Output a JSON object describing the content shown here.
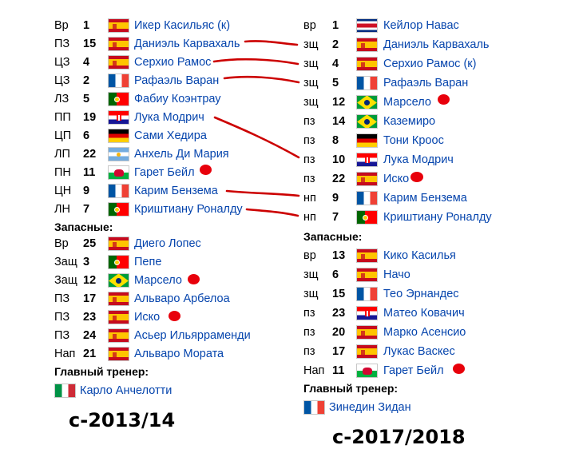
{
  "left": {
    "season": "с-2013/14",
    "starters": [
      {
        "pos": "Вр",
        "num": "1",
        "flag": "es",
        "name": "Икер Касильяс (к)"
      },
      {
        "pos": "ПЗ",
        "num": "15",
        "flag": "es",
        "name": "Даниэль Карвахаль"
      },
      {
        "pos": "ЦЗ",
        "num": "4",
        "flag": "es",
        "name": "Серхио Рамос"
      },
      {
        "pos": "ЦЗ",
        "num": "2",
        "flag": "fr",
        "name": "Рафаэль Варан"
      },
      {
        "pos": "ЛЗ",
        "num": "5",
        "flag": "pt",
        "name": "Фабиу Коэнтрау"
      },
      {
        "pos": "ПП",
        "num": "19",
        "flag": "hr",
        "name": "Лука Модрич"
      },
      {
        "pos": "ЦП",
        "num": "6",
        "flag": "de",
        "name": "Сами Хедира"
      },
      {
        "pos": "ЛП",
        "num": "22",
        "flag": "ar",
        "name": "Анхель Ди Мария"
      },
      {
        "pos": "ПН",
        "num": "11",
        "flag": "wa",
        "name": "Гарет Бейл"
      },
      {
        "pos": "ЦН",
        "num": "9",
        "flag": "fr",
        "name": "Карим Бензема"
      },
      {
        "pos": "ЛН",
        "num": "7",
        "flag": "pt",
        "name": "Криштиану Роналду"
      }
    ],
    "subs_label": "Запасные:",
    "subs": [
      {
        "pos": "Вр",
        "num": "25",
        "flag": "es",
        "name": "Диего Лопес"
      },
      {
        "pos": "Защ",
        "num": "3",
        "flag": "pt",
        "name": "Пепе"
      },
      {
        "pos": "Защ",
        "num": "12",
        "flag": "br",
        "name": "Марсело"
      },
      {
        "pos": "ПЗ",
        "num": "17",
        "flag": "es",
        "name": "Альваро Арбелоа"
      },
      {
        "pos": "ПЗ",
        "num": "23",
        "flag": "es",
        "name": "Иско"
      },
      {
        "pos": "ПЗ",
        "num": "24",
        "flag": "es",
        "name": "Асьер Ильярраменди"
      },
      {
        "pos": "Нап",
        "num": "21",
        "flag": "es",
        "name": "Альваро Мората"
      }
    ],
    "coach_label": "Главный тренер:",
    "coach": {
      "flag": "it",
      "name": "Карло Анчелотти"
    }
  },
  "right": {
    "season": "с-2017/2018",
    "starters": [
      {
        "pos": "вр",
        "num": "1",
        "flag": "cr",
        "name": "Кейлор Навас"
      },
      {
        "pos": "зщ",
        "num": "2",
        "flag": "es",
        "name": "Даниэль Карвахаль"
      },
      {
        "pos": "зщ",
        "num": "4",
        "flag": "es",
        "name": "Серхио Рамос (к)"
      },
      {
        "pos": "зщ",
        "num": "5",
        "flag": "fr",
        "name": "Рафаэль Варан"
      },
      {
        "pos": "зщ",
        "num": "12",
        "flag": "br",
        "name": "Марсело"
      },
      {
        "pos": "пз",
        "num": "14",
        "flag": "br",
        "name": "Каземиро"
      },
      {
        "pos": "пз",
        "num": "8",
        "flag": "de",
        "name": "Тони Кроос"
      },
      {
        "pos": "пз",
        "num": "10",
        "flag": "hr",
        "name": "Лука Модрич"
      },
      {
        "pos": "пз",
        "num": "22",
        "flag": "es",
        "name": "Иско"
      },
      {
        "pos": "нп",
        "num": "9",
        "flag": "fr",
        "name": "Карим Бензема"
      },
      {
        "pos": "нп",
        "num": "7",
        "flag": "pt",
        "name": "Криштиану Роналду"
      }
    ],
    "subs_label": "Запасные:",
    "subs": [
      {
        "pos": "вр",
        "num": "13",
        "flag": "es",
        "name": "Кико Касилья"
      },
      {
        "pos": "зщ",
        "num": "6",
        "flag": "es",
        "name": "Начо"
      },
      {
        "pos": "зщ",
        "num": "15",
        "flag": "fr",
        "name": "Тео Эрнандес"
      },
      {
        "pos": "пз",
        "num": "23",
        "flag": "hr",
        "name": "Матео Ковачич"
      },
      {
        "pos": "пз",
        "num": "20",
        "flag": "es",
        "name": "Марко Асенсио"
      },
      {
        "pos": "пз",
        "num": "17",
        "flag": "es",
        "name": "Лукас Васкес"
      },
      {
        "pos": "Нап",
        "num": "11",
        "flag": "wa",
        "name": "Гарет Бейл"
      }
    ],
    "coach_label": "Главный тренер:",
    "coach": {
      "flag": "fr",
      "name": "Зинедин Зидан"
    }
  },
  "marker_color": "#e8000b"
}
